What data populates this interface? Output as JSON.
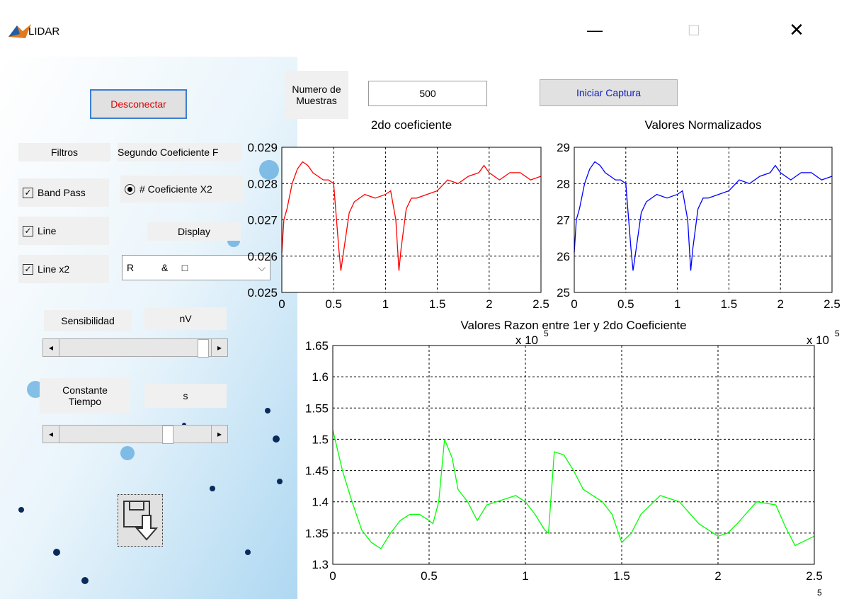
{
  "window": {
    "title": "LIDAR"
  },
  "controls": {
    "disconnect_button": "Desconectar",
    "samples_label": "Numero de\nMuestras",
    "samples_input": "500",
    "start_button": "Iniciar Captura",
    "filters_label": "Filtros",
    "second_coef_label": "Segundo Coeficiente F",
    "checkboxes": [
      "Band Pass",
      "Line",
      "Line x2"
    ],
    "radio": "# Coeficiente X2",
    "display_label": "Display",
    "display_select": "R          &     □",
    "sensitivity_label": "Sensibilidad",
    "sensitivity_unit": "nV",
    "time_constant_label": "Constante\nTiempo",
    "time_constant_unit": "s"
  },
  "chart_data": [
    {
      "type": "line",
      "title": "2do coeficiente",
      "x_multiplier": "x 10",
      "x_multiplier_exponent": "5",
      "xlim": [
        0,
        2.5
      ],
      "xticks": [
        0,
        0.5,
        1,
        1.5,
        2,
        2.5
      ],
      "ylim": [
        0.025,
        0.029
      ],
      "yticks": [
        0.025,
        0.026,
        0.027,
        0.028,
        0.029
      ],
      "grid": true,
      "x": [
        0,
        0.02,
        0.05,
        0.1,
        0.15,
        0.2,
        0.25,
        0.3,
        0.35,
        0.4,
        0.45,
        0.5,
        0.55,
        0.57,
        0.6,
        0.65,
        0.7,
        0.8,
        0.9,
        1.0,
        1.05,
        1.1,
        1.13,
        1.15,
        1.2,
        1.25,
        1.3,
        1.4,
        1.5,
        1.6,
        1.7,
        1.8,
        1.9,
        1.95,
        2.0,
        2.1,
        2.2,
        2.3,
        2.4,
        2.5
      ],
      "series": [
        {
          "color": "#ff0000",
          "values": [
            0.0261,
            0.027,
            0.0273,
            0.028,
            0.0284,
            0.0286,
            0.0285,
            0.0283,
            0.0282,
            0.0281,
            0.0281,
            0.028,
            0.0262,
            0.0256,
            0.0262,
            0.0272,
            0.0275,
            0.0277,
            0.0276,
            0.0277,
            0.0278,
            0.027,
            0.0256,
            0.0262,
            0.0273,
            0.0276,
            0.0276,
            0.0277,
            0.0278,
            0.0281,
            0.028,
            0.0282,
            0.0283,
            0.0285,
            0.0283,
            0.0281,
            0.0283,
            0.0283,
            0.0281,
            0.0282
          ]
        }
      ]
    },
    {
      "type": "line",
      "title": "Valores Normalizados",
      "x_multiplier": "x 10",
      "x_multiplier_exponent": "5",
      "xlim": [
        0,
        2.5
      ],
      "xticks": [
        0,
        0.5,
        1,
        1.5,
        2,
        2.5
      ],
      "ylim": [
        25,
        29
      ],
      "yticks": [
        25,
        26,
        27,
        28,
        29
      ],
      "grid": true,
      "x": [
        0,
        0.02,
        0.05,
        0.1,
        0.15,
        0.2,
        0.25,
        0.3,
        0.35,
        0.4,
        0.45,
        0.5,
        0.55,
        0.57,
        0.6,
        0.65,
        0.7,
        0.8,
        0.9,
        1.0,
        1.05,
        1.1,
        1.13,
        1.15,
        1.2,
        1.25,
        1.3,
        1.4,
        1.5,
        1.6,
        1.7,
        1.8,
        1.9,
        1.95,
        2.0,
        2.1,
        2.2,
        2.3,
        2.4,
        2.5
      ],
      "series": [
        {
          "color": "#0000ff",
          "values": [
            26.1,
            27.0,
            27.3,
            28.0,
            28.4,
            28.6,
            28.5,
            28.3,
            28.2,
            28.1,
            28.1,
            28.0,
            26.2,
            25.6,
            26.2,
            27.2,
            27.5,
            27.7,
            27.6,
            27.7,
            27.8,
            27.0,
            25.6,
            26.2,
            27.3,
            27.6,
            27.6,
            27.7,
            27.8,
            28.1,
            28.0,
            28.2,
            28.3,
            28.5,
            28.3,
            28.1,
            28.3,
            28.3,
            28.1,
            28.2
          ]
        }
      ]
    },
    {
      "type": "line",
      "title": "Valores Razon entre 1er y 2do Coeficiente",
      "x_multiplier_exponent": "5",
      "xlim": [
        0,
        2.5
      ],
      "xticks": [
        0,
        0.5,
        1,
        1.5,
        2,
        2.5
      ],
      "ylim": [
        1.3,
        1.65
      ],
      "yticks": [
        1.3,
        1.35,
        1.4,
        1.45,
        1.5,
        1.55,
        1.6,
        1.65
      ],
      "grid": true,
      "x": [
        0,
        0.05,
        0.1,
        0.15,
        0.2,
        0.25,
        0.3,
        0.35,
        0.4,
        0.45,
        0.5,
        0.52,
        0.55,
        0.58,
        0.62,
        0.65,
        0.7,
        0.75,
        0.8,
        0.85,
        0.9,
        0.95,
        1.0,
        1.05,
        1.1,
        1.12,
        1.15,
        1.2,
        1.25,
        1.3,
        1.35,
        1.4,
        1.45,
        1.5,
        1.55,
        1.6,
        1.7,
        1.8,
        1.9,
        2.0,
        2.05,
        2.1,
        2.2,
        2.3,
        2.35,
        2.4,
        2.5
      ],
      "series": [
        {
          "color": "#00ff00",
          "values": [
            1.515,
            1.45,
            1.4,
            1.355,
            1.335,
            1.325,
            1.35,
            1.37,
            1.38,
            1.38,
            1.37,
            1.365,
            1.4,
            1.5,
            1.47,
            1.42,
            1.4,
            1.37,
            1.395,
            1.4,
            1.405,
            1.41,
            1.4,
            1.38,
            1.355,
            1.35,
            1.48,
            1.475,
            1.45,
            1.42,
            1.41,
            1.4,
            1.38,
            1.335,
            1.35,
            1.38,
            1.41,
            1.4,
            1.365,
            1.345,
            1.35,
            1.365,
            1.4,
            1.395,
            1.36,
            1.33,
            1.345
          ]
        }
      ]
    }
  ]
}
